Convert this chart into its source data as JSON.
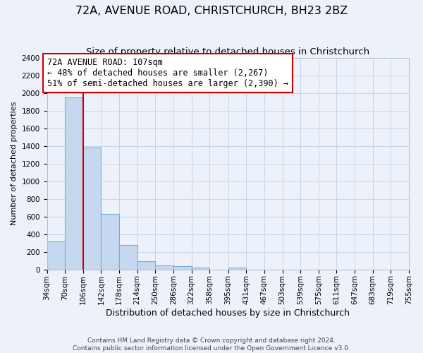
{
  "title": "72A, AVENUE ROAD, CHRISTCHURCH, BH23 2BZ",
  "subtitle": "Size of property relative to detached houses in Christchurch",
  "xlabel": "Distribution of detached houses by size in Christchurch",
  "ylabel": "Number of detached properties",
  "bin_edges": [
    34,
    70,
    106,
    142,
    178,
    214,
    250,
    286,
    322,
    358,
    395,
    431,
    467,
    503,
    539,
    575,
    611,
    647,
    683,
    719,
    755
  ],
  "bin_labels": [
    "34sqm",
    "70sqm",
    "106sqm",
    "142sqm",
    "178sqm",
    "214sqm",
    "250sqm",
    "286sqm",
    "322sqm",
    "358sqm",
    "395sqm",
    "431sqm",
    "467sqm",
    "503sqm",
    "539sqm",
    "575sqm",
    "611sqm",
    "647sqm",
    "683sqm",
    "719sqm",
    "755sqm"
  ],
  "bar_heights": [
    320,
    1950,
    1380,
    630,
    275,
    95,
    45,
    35,
    20,
    0,
    20,
    0,
    0,
    0,
    0,
    0,
    0,
    0,
    0,
    0
  ],
  "bar_color": "#c5d8ef",
  "bar_edge_color": "#7aadd4",
  "grid_color": "#c8d4e8",
  "bg_color": "#edf2fa",
  "property_line_x": 106,
  "property_line_color": "#cc0000",
  "annotation_title": "72A AVENUE ROAD: 107sqm",
  "annotation_line1": "← 48% of detached houses are smaller (2,267)",
  "annotation_line2": "51% of semi-detached houses are larger (2,390) →",
  "annotation_box_color": "#ffffff",
  "annotation_box_edge": "#cc0000",
  "ylim": [
    0,
    2400
  ],
  "yticks": [
    0,
    200,
    400,
    600,
    800,
    1000,
    1200,
    1400,
    1600,
    1800,
    2000,
    2200,
    2400
  ],
  "footer1": "Contains HM Land Registry data © Crown copyright and database right 2024.",
  "footer2": "Contains public sector information licensed under the Open Government Licence v3.0.",
  "title_fontsize": 11.5,
  "subtitle_fontsize": 9.5,
  "xlabel_fontsize": 9,
  "ylabel_fontsize": 8,
  "tick_fontsize": 7.5,
  "annotation_fontsize": 8.5,
  "footer_fontsize": 6.5
}
